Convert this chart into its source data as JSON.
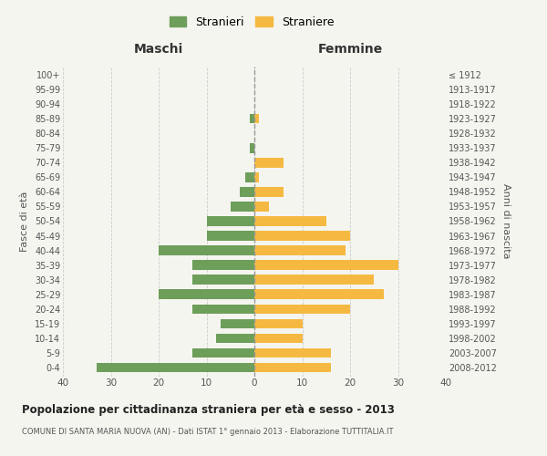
{
  "age_groups": [
    "0-4",
    "5-9",
    "10-14",
    "15-19",
    "20-24",
    "25-29",
    "30-34",
    "35-39",
    "40-44",
    "45-49",
    "50-54",
    "55-59",
    "60-64",
    "65-69",
    "70-74",
    "75-79",
    "80-84",
    "85-89",
    "90-94",
    "95-99",
    "100+"
  ],
  "birth_years": [
    "2008-2012",
    "2003-2007",
    "1998-2002",
    "1993-1997",
    "1988-1992",
    "1983-1987",
    "1978-1982",
    "1973-1977",
    "1968-1972",
    "1963-1967",
    "1958-1962",
    "1953-1957",
    "1948-1952",
    "1943-1947",
    "1938-1942",
    "1933-1937",
    "1928-1932",
    "1923-1927",
    "1918-1922",
    "1913-1917",
    "≤ 1912"
  ],
  "maschi": [
    33,
    13,
    8,
    7,
    13,
    20,
    13,
    13,
    20,
    10,
    10,
    5,
    3,
    2,
    0,
    1,
    0,
    1,
    0,
    0,
    0
  ],
  "femmine": [
    16,
    16,
    10,
    10,
    20,
    27,
    25,
    30,
    19,
    20,
    15,
    3,
    6,
    1,
    6,
    0,
    0,
    1,
    0,
    0,
    0
  ],
  "color_maschi": "#6d9e5a",
  "color_femmine": "#f5b942",
  "title": "Popolazione per cittadinanza straniera per età e sesso - 2013",
  "subtitle": "COMUNE DI SANTA MARIA NUOVA (AN) - Dati ISTAT 1° gennaio 2013 - Elaborazione TUTTITALIA.IT",
  "xlabel_left": "Maschi",
  "xlabel_right": "Femmine",
  "ylabel_left": "Fasce di età",
  "ylabel_right": "Anni di nascita",
  "legend_maschi": "Stranieri",
  "legend_femmine": "Straniere",
  "xlim": 40,
  "background_color": "#f5f5f0",
  "grid_color": "#cccccc"
}
